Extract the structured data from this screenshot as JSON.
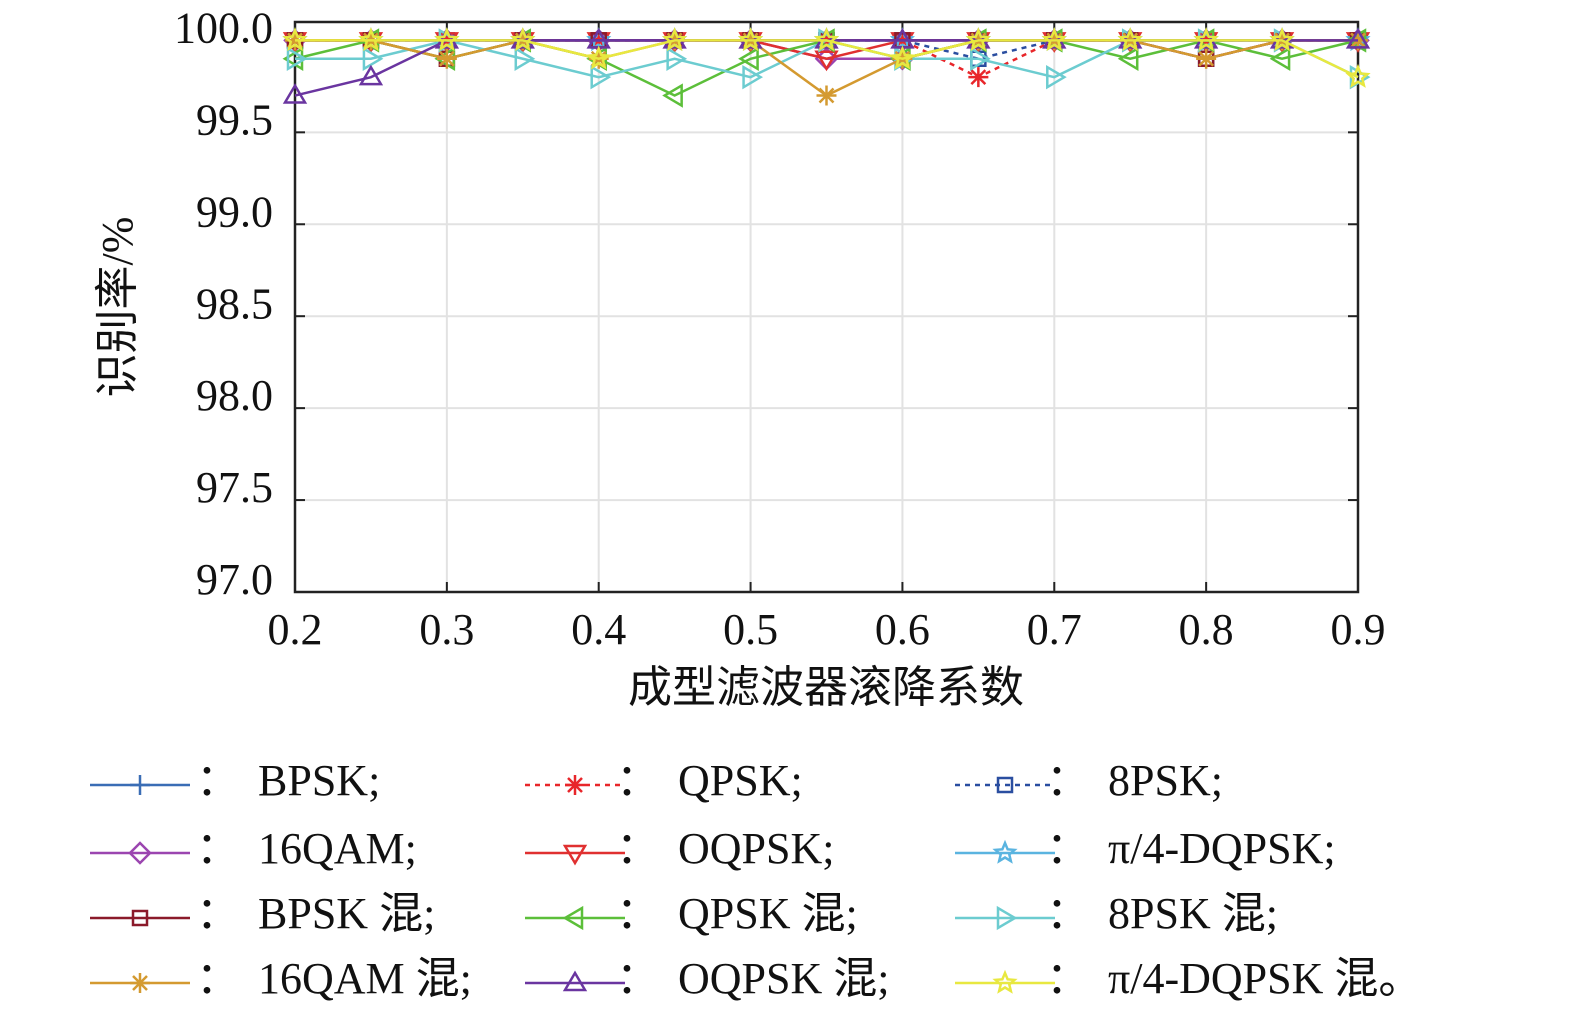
{
  "chart_data": {
    "type": "line",
    "x_label": "成型滤波器滚降系数",
    "y_label": "识别率/%",
    "x": [
      0.2,
      0.25,
      0.3,
      0.35,
      0.4,
      0.45,
      0.5,
      0.55,
      0.6,
      0.65,
      0.7,
      0.75,
      0.8,
      0.85,
      0.9
    ],
    "xlim": [
      0.2,
      0.9
    ],
    "xticks": [
      0.2,
      0.3,
      0.4,
      0.5,
      0.6,
      0.7,
      0.8,
      0.9
    ],
    "ylim": [
      97,
      100.1
    ],
    "yticks": [
      {
        "value": 97,
        "label": "97.0"
      },
      {
        "value": 97.5,
        "label": "97.5"
      },
      {
        "value": 98,
        "label": "98.0"
      },
      {
        "value": 98.5,
        "label": "98.5"
      },
      {
        "value": 99,
        "label": "99.0"
      },
      {
        "value": 99.5,
        "label": "99.5"
      },
      {
        "value": 100,
        "label": "100.0"
      }
    ],
    "grid": true,
    "legend_separator": "：",
    "series": [
      {
        "name": "BPSK;",
        "color": "#3a6db5",
        "marker": "plus",
        "dashed": false,
        "values": [
          100,
          100,
          100,
          100,
          100,
          100,
          100,
          100,
          100,
          100,
          100,
          100,
          100,
          100,
          100
        ]
      },
      {
        "name": "QPSK;",
        "color": "#e8262a",
        "marker": "asterisk",
        "dashed": true,
        "values": [
          100,
          100,
          100,
          100,
          100,
          100,
          100,
          100,
          100,
          99.8,
          100,
          100,
          100,
          100,
          100
        ]
      },
      {
        "name": "8PSK;",
        "color": "#2a4ea0",
        "marker": "square",
        "dashed": true,
        "values": [
          100,
          100,
          100,
          100,
          100,
          100,
          100,
          100,
          100,
          99.9,
          100,
          100,
          99.9,
          100,
          100
        ]
      },
      {
        "name": "16QAM;",
        "color": "#9b45b0",
        "marker": "diamond",
        "dashed": false,
        "values": [
          100,
          100,
          100,
          100,
          100,
          100,
          100,
          99.9,
          99.9,
          100,
          100,
          100,
          100,
          100,
          100
        ]
      },
      {
        "name": "OQPSK;",
        "color": "#e03030",
        "marker": "tri-down",
        "dashed": false,
        "values": [
          100,
          100,
          100,
          100,
          100,
          100,
          100,
          99.9,
          100,
          100,
          100,
          100,
          100,
          100,
          100
        ]
      },
      {
        "name": "π/4-DQPSK;",
        "color": "#5ab4e0",
        "marker": "star",
        "dashed": false,
        "values": [
          100,
          100,
          100,
          100,
          100,
          100,
          100,
          100,
          100,
          100,
          100,
          100,
          100,
          100,
          100
        ]
      },
      {
        "name": "BPSK 混;",
        "color": "#8b1a2a",
        "marker": "square",
        "dashed": false,
        "values": [
          100,
          100,
          99.9,
          100,
          100,
          100,
          100,
          100,
          100,
          100,
          100,
          100,
          99.9,
          100,
          100
        ]
      },
      {
        "name": "QPSK 混;",
        "color": "#5cbf3a",
        "marker": "tri-left",
        "dashed": false,
        "values": [
          99.9,
          100,
          99.9,
          100,
          99.9,
          99.7,
          99.9,
          100,
          99.9,
          100,
          100,
          99.9,
          100,
          99.9,
          100
        ]
      },
      {
        "name": "8PSK 混;",
        "color": "#6cccd0",
        "marker": "tri-right",
        "dashed": false,
        "values": [
          99.9,
          99.9,
          100,
          99.9,
          99.8,
          99.9,
          99.8,
          100,
          99.9,
          99.9,
          99.8,
          100,
          100,
          100,
          99.8
        ]
      },
      {
        "name": "16QAM 混;",
        "color": "#d49a30",
        "marker": "asterisk",
        "dashed": false,
        "values": [
          100,
          100,
          99.9,
          100,
          99.9,
          100,
          100,
          99.7,
          99.9,
          100,
          100,
          100,
          99.9,
          100,
          100
        ]
      },
      {
        "name": "OQPSK 混;",
        "color": "#6a35a0",
        "marker": "tri-up",
        "dashed": false,
        "values": [
          99.7,
          99.8,
          100,
          100,
          100,
          100,
          100,
          100,
          100,
          100,
          100,
          100,
          100,
          100,
          100
        ]
      },
      {
        "name": "π/4-DQPSK 混。",
        "color": "#e8e840",
        "marker": "star",
        "dashed": false,
        "values": [
          100,
          100,
          100,
          100,
          99.9,
          100,
          100,
          100,
          99.9,
          100,
          100,
          100,
          100,
          100,
          99.8
        ]
      }
    ]
  }
}
